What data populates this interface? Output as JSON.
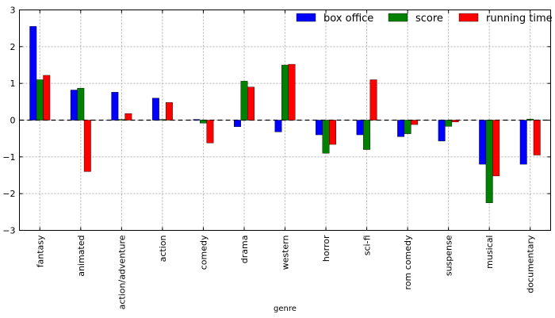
{
  "chart_data": {
    "type": "bar",
    "xlabel": "genre",
    "ylabel": "",
    "ylim": [
      -3,
      3
    ],
    "yticks": [
      -3,
      -2,
      -1,
      0,
      1,
      2,
      3
    ],
    "ytick_labels": [
      "−3",
      "−2",
      "−1",
      "0",
      "1",
      "2",
      "3"
    ],
    "grid": true,
    "legend_position": "top-right",
    "zero_line": "dashed",
    "categories": [
      "fantasy",
      "animated",
      "action/adventure",
      "action",
      "comedy",
      "drama",
      "western",
      "horror",
      "sci-fi",
      "rom comedy",
      "suspense",
      "musical",
      "documentary"
    ],
    "series": [
      {
        "name": "box office",
        "color": "#0000ff",
        "values": [
          2.55,
          0.82,
          0.76,
          0.6,
          0.02,
          -0.18,
          -0.32,
          -0.4,
          -0.4,
          -0.45,
          -0.57,
          -1.2,
          -1.2
        ]
      },
      {
        "name": "score",
        "color": "#008000",
        "values": [
          1.1,
          0.87,
          0.02,
          0.02,
          -0.08,
          1.06,
          1.5,
          -0.9,
          -0.8,
          -0.37,
          -0.17,
          -2.25,
          0.03
        ]
      },
      {
        "name": "running time",
        "color": "#ff0000",
        "values": [
          1.22,
          -1.4,
          0.18,
          0.48,
          -0.62,
          0.9,
          1.52,
          -0.66,
          1.1,
          -0.12,
          -0.05,
          -1.52,
          -0.95
        ]
      }
    ]
  }
}
